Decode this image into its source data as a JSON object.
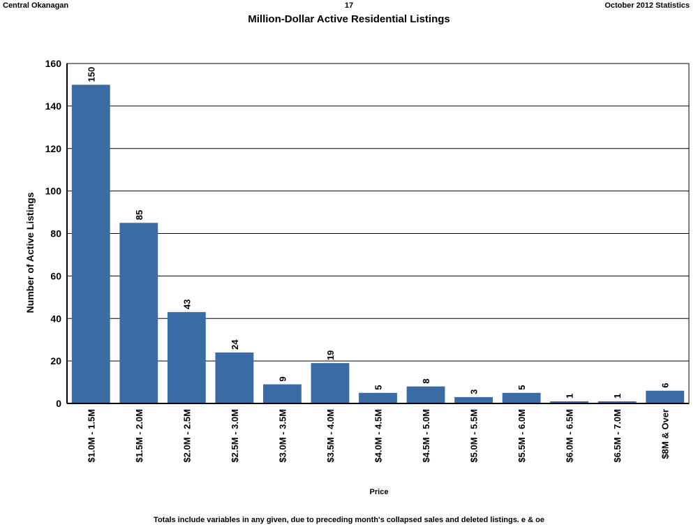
{
  "header": {
    "left": "Central Okanagan",
    "page_number": "17",
    "right": "October 2012 Statistics"
  },
  "footnote": "Totals include variables in any given, due to preceding month's collapsed sales and deleted listings. e & oe",
  "chart_data": {
    "type": "bar",
    "title": "Million-Dollar Active Residential Listings",
    "xlabel": "Price",
    "ylabel": "Number of Active Listings",
    "ylim": [
      0,
      160
    ],
    "yticks": [
      0,
      20,
      40,
      60,
      80,
      100,
      120,
      140,
      160
    ],
    "grid": true,
    "legend": "none",
    "bar_color": "#3a6ba5",
    "categories": [
      "$1.0M - 1.5M",
      "$1.5M - 2.0M",
      "$2.0M - 2.5M",
      "$2.5M - 3.0M",
      "$3.0M - 3.5M",
      "$3.5M - 4.0M",
      "$4.0M - 4.5M",
      "$4.5M - 5.0M",
      "$5.0M - 5.5M",
      "$5.5M - 6.0M",
      "$6.0M - 6.5M",
      "$6.5M - 7.0M",
      "$8M & Over"
    ],
    "values": [
      150,
      85,
      43,
      24,
      9,
      19,
      5,
      8,
      3,
      5,
      1,
      1,
      6
    ]
  }
}
